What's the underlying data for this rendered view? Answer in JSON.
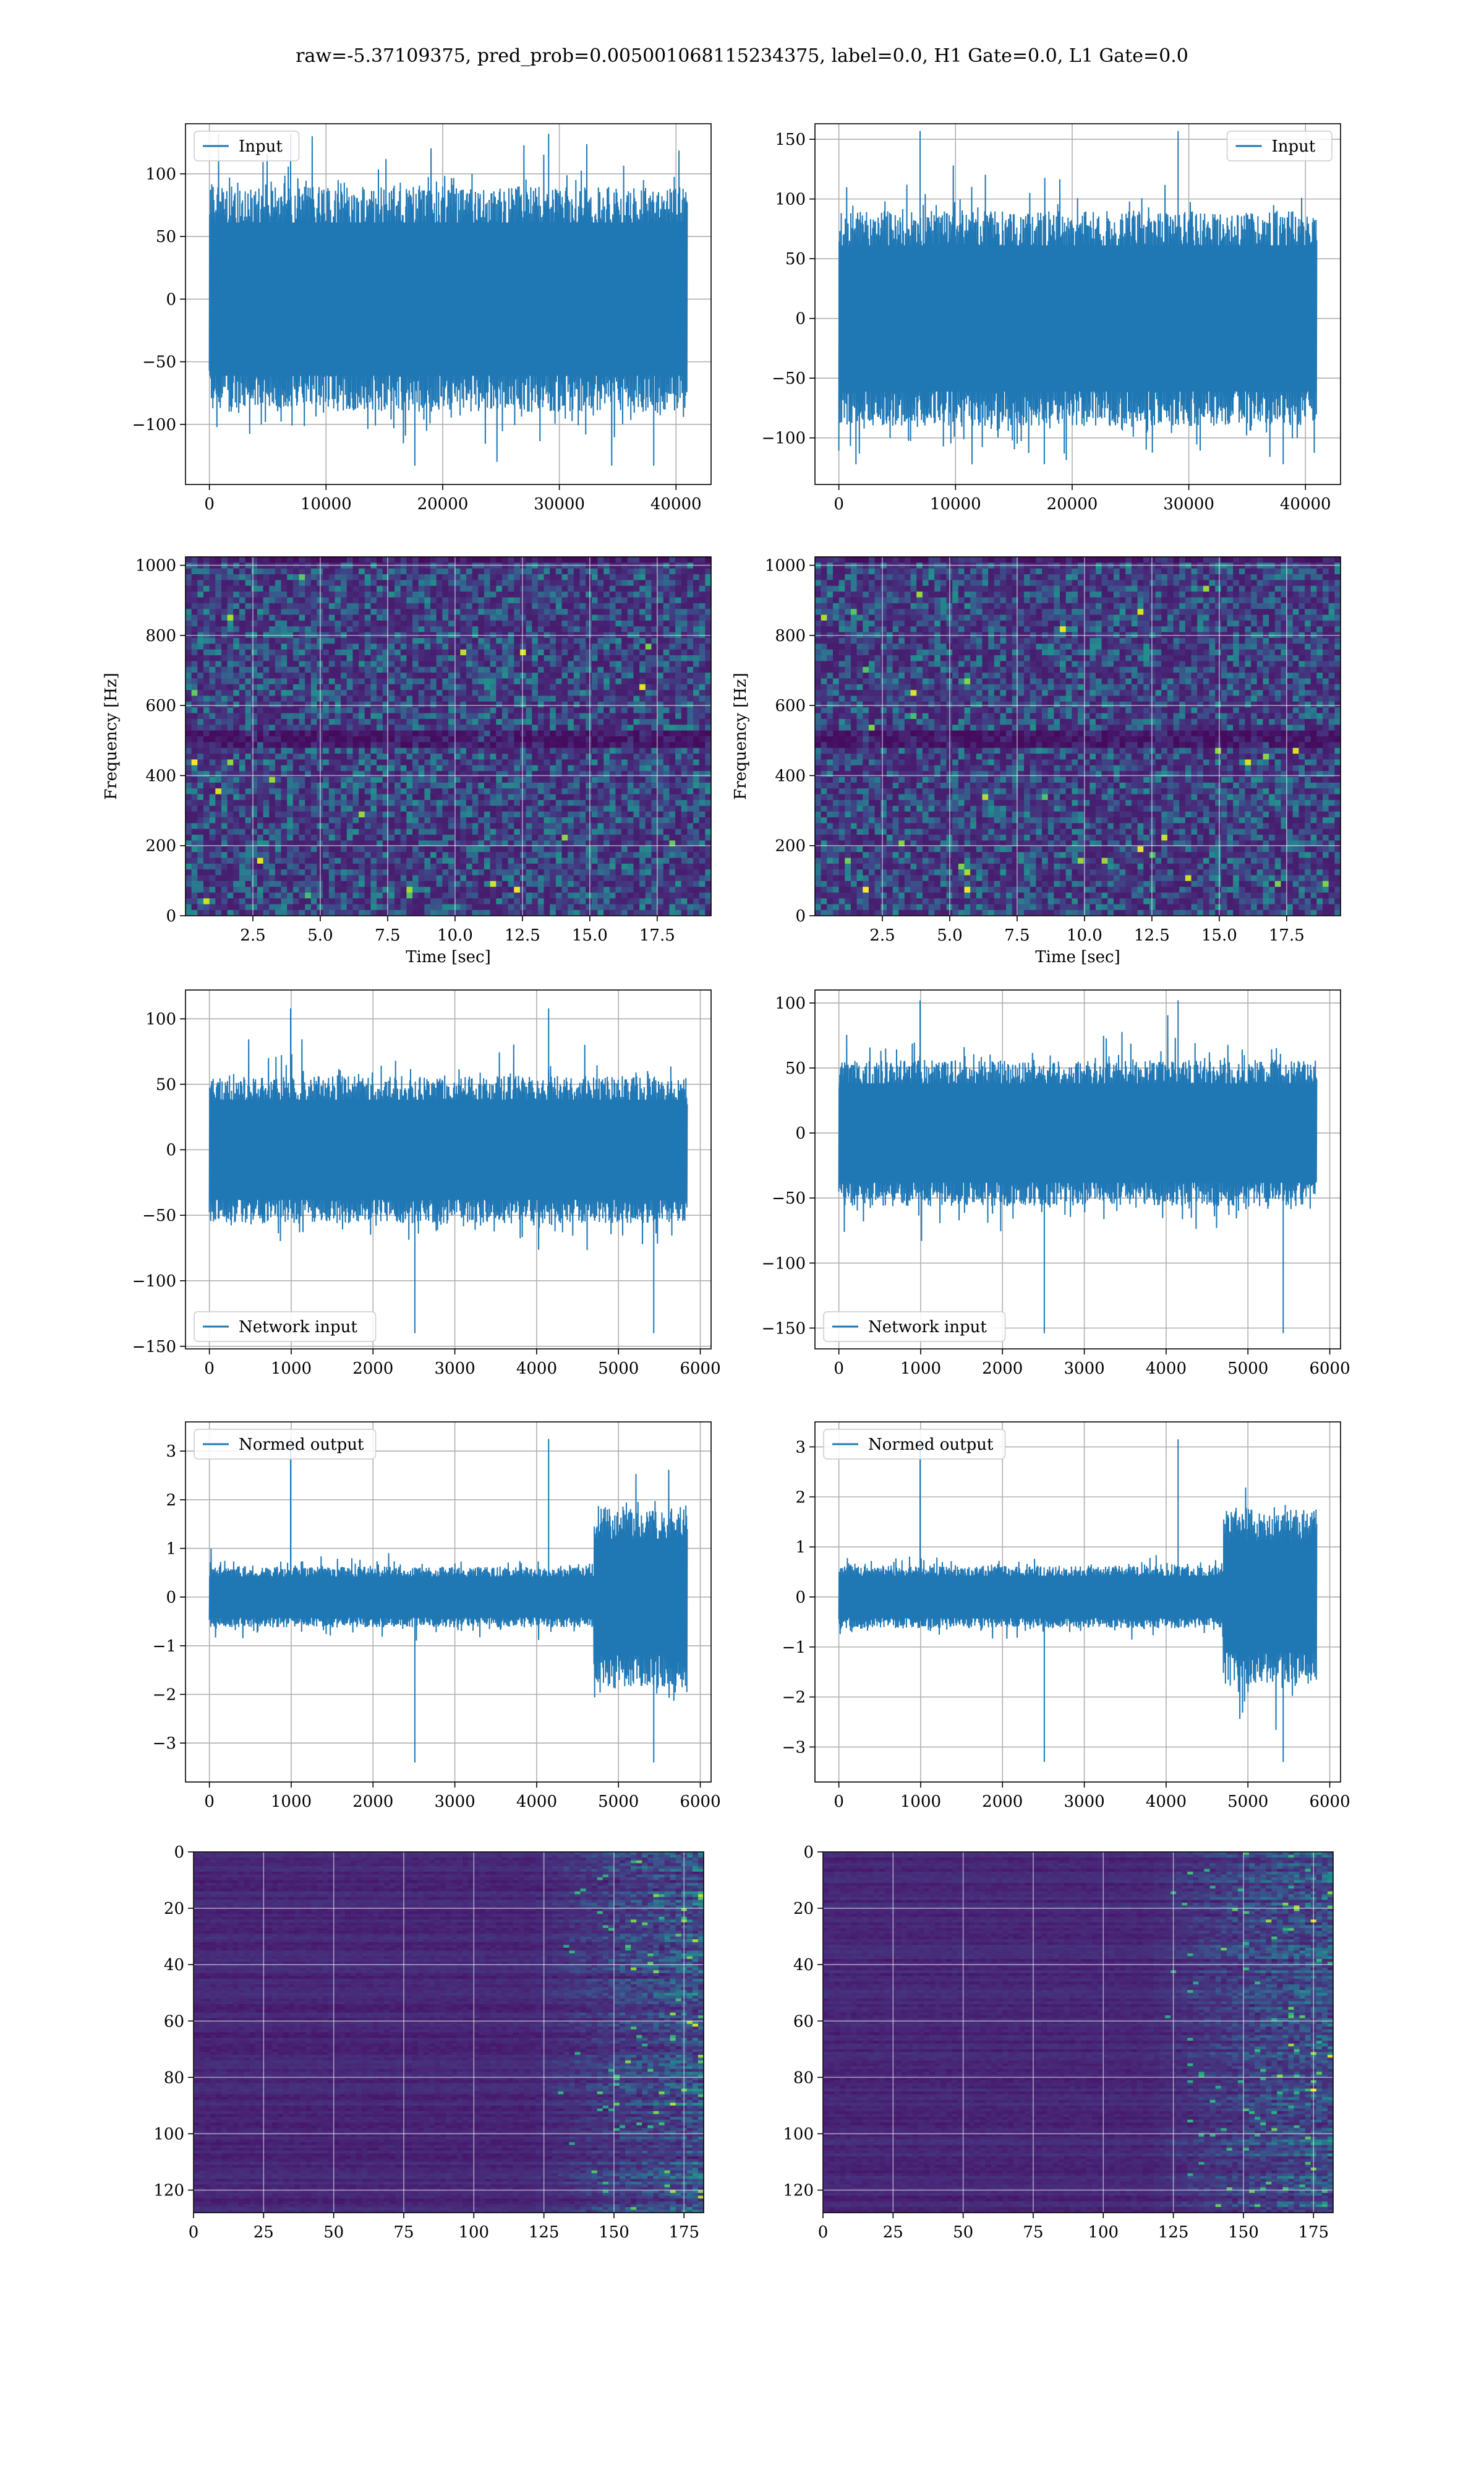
{
  "figure": {
    "suptitle": "raw=-5.37109375, pred_prob=0.005001068115234375, label=0.0, H1 Gate=0.0, L1 Gate=0.0",
    "line_color": "#1f77b4"
  },
  "chart_data": [
    {
      "id": "input-h1",
      "type": "line",
      "series": [
        {
          "name": "Input"
        }
      ],
      "legend": "upper-left",
      "xlim": [
        -2048,
        43008
      ],
      "ylim": [
        -148,
        140
      ],
      "xticks": [
        0,
        10000,
        20000,
        30000,
        40000
      ],
      "yticks": [
        -100,
        -50,
        0,
        50,
        100
      ],
      "xticklabels": [
        "0",
        "10000",
        "20000",
        "30000",
        "40000"
      ],
      "yticklabels": [
        "−100",
        "−50",
        "0",
        "50",
        "100"
      ],
      "xlabel": "",
      "ylabel": "",
      "grid": true,
      "signal": {
        "n_samples": 40960,
        "x_end": 40960,
        "envelope": [
          -72,
          72
        ],
        "peak_range": [
          -133,
          132
        ]
      }
    },
    {
      "id": "input-l1",
      "type": "line",
      "series": [
        {
          "name": "Input"
        }
      ],
      "legend": "upper-right",
      "xlim": [
        -2048,
        43008
      ],
      "ylim": [
        -139,
        163
      ],
      "xticks": [
        0,
        10000,
        20000,
        30000,
        40000
      ],
      "yticks": [
        -100,
        -50,
        0,
        50,
        100,
        150
      ],
      "xticklabels": [
        "0",
        "10000",
        "20000",
        "30000",
        "40000"
      ],
      "yticklabels": [
        "−100",
        "−50",
        "0",
        "50",
        "100",
        "150"
      ],
      "xlabel": "",
      "ylabel": "",
      "grid": true,
      "signal": {
        "n_samples": 40960,
        "x_end": 40960,
        "envelope": [
          -72,
          72
        ],
        "peak_range": [
          -122,
          157
        ]
      }
    },
    {
      "id": "spectrogram-h1",
      "type": "heatmap",
      "colormap": "viridis",
      "xlim": [
        0,
        19.5
      ],
      "ylim": [
        0,
        1024
      ],
      "xticks": [
        2.5,
        5,
        7.5,
        10,
        12.5,
        15,
        17.5
      ],
      "yticks": [
        0,
        200,
        400,
        600,
        800,
        1000
      ],
      "xticklabels": [
        "2.5",
        "5.0",
        "7.5",
        "10.0",
        "12.5",
        "15.0",
        "17.5"
      ],
      "yticklabels": [
        "0",
        "200",
        "400",
        "600",
        "800",
        "1000"
      ],
      "xlabel": "Time [sec]",
      "ylabel": "Frequency [Hz]",
      "grid": true,
      "dark_band_hz": [
        480,
        520
      ]
    },
    {
      "id": "spectrogram-l1",
      "type": "heatmap",
      "colormap": "viridis",
      "xlim": [
        0,
        19.5
      ],
      "ylim": [
        0,
        1024
      ],
      "xticks": [
        2.5,
        5,
        7.5,
        10,
        12.5,
        15,
        17.5
      ],
      "yticks": [
        0,
        200,
        400,
        600,
        800,
        1000
      ],
      "xticklabels": [
        "2.5",
        "5.0",
        "7.5",
        "10.0",
        "12.5",
        "15.0",
        "17.5"
      ],
      "yticklabels": [
        "0",
        "200",
        "400",
        "600",
        "800",
        "1000"
      ],
      "xlabel": "Time [sec]",
      "ylabel": "Frequency [Hz]",
      "grid": true,
      "dark_band_hz": [
        480,
        520
      ]
    },
    {
      "id": "network-input-h1",
      "type": "line",
      "series": [
        {
          "name": "Network input"
        }
      ],
      "legend": "lower-left",
      "xlim": [
        -292,
        6132
      ],
      "ylim": [
        -152,
        122
      ],
      "xticks": [
        0,
        1000,
        2000,
        3000,
        4000,
        5000,
        6000
      ],
      "yticks": [
        -150,
        -100,
        -50,
        0,
        50,
        100
      ],
      "xticklabels": [
        "0",
        "1000",
        "2000",
        "3000",
        "4000",
        "5000",
        "6000"
      ],
      "yticklabels": [
        "−150",
        "−100",
        "−50",
        "0",
        "50",
        "100"
      ],
      "xlabel": "",
      "ylabel": "",
      "grid": true,
      "signal": {
        "n_samples": 5840,
        "x_end": 5840,
        "envelope": [
          -45,
          45
        ],
        "peak_range": [
          -140,
          108
        ]
      }
    },
    {
      "id": "network-input-l1",
      "type": "line",
      "series": [
        {
          "name": "Network input"
        }
      ],
      "legend": "lower-left",
      "xlim": [
        -292,
        6132
      ],
      "ylim": [
        -166,
        110
      ],
      "xticks": [
        0,
        1000,
        2000,
        3000,
        4000,
        5000,
        6000
      ],
      "yticks": [
        -150,
        -100,
        -50,
        0,
        50,
        100
      ],
      "xticklabels": [
        "0",
        "1000",
        "2000",
        "3000",
        "4000",
        "5000",
        "6000"
      ],
      "yticklabels": [
        "−150",
        "−100",
        "−50",
        "0",
        "50",
        "100"
      ],
      "xlabel": "",
      "ylabel": "",
      "grid": true,
      "signal": {
        "n_samples": 5840,
        "x_end": 5840,
        "envelope": [
          -45,
          45
        ],
        "peak_range": [
          -154,
          102
        ]
      }
    },
    {
      "id": "normed-output-h1",
      "type": "line",
      "series": [
        {
          "name": "Normed output"
        }
      ],
      "legend": "upper-left",
      "xlim": [
        -292,
        6132
      ],
      "ylim": [
        -3.8,
        3.6
      ],
      "xticks": [
        0,
        1000,
        2000,
        3000,
        4000,
        5000,
        6000
      ],
      "yticks": [
        -3,
        -2,
        -1,
        0,
        1,
        2,
        3
      ],
      "xticklabels": [
        "0",
        "1000",
        "2000",
        "3000",
        "4000",
        "5000",
        "6000"
      ],
      "yticklabels": [
        "−3",
        "−2",
        "−1",
        "0",
        "1",
        "2",
        "3"
      ],
      "xlabel": "",
      "ylabel": "",
      "grid": true,
      "signal": {
        "n_samples": 5840,
        "x_end": 5840,
        "envelope": [
          -0.5,
          0.5
        ],
        "peak_range": [
          -3.4,
          3.25
        ],
        "burst_from": 4700,
        "burst_envelope": [
          -1.5,
          1.5
        ]
      }
    },
    {
      "id": "normed-output-l1",
      "type": "line",
      "series": [
        {
          "name": "Normed output"
        }
      ],
      "legend": "upper-left",
      "xlim": [
        -292,
        6132
      ],
      "ylim": [
        -3.7,
        3.5
      ],
      "xticks": [
        0,
        1000,
        2000,
        3000,
        4000,
        5000,
        6000
      ],
      "yticks": [
        -3,
        -2,
        -1,
        0,
        1,
        2,
        3
      ],
      "xticklabels": [
        "0",
        "1000",
        "2000",
        "3000",
        "4000",
        "5000",
        "6000"
      ],
      "yticklabels": [
        "−3",
        "−2",
        "−1",
        "0",
        "1",
        "2",
        "3"
      ],
      "xlabel": "",
      "ylabel": "",
      "grid": true,
      "signal": {
        "n_samples": 5840,
        "x_end": 5840,
        "envelope": [
          -0.5,
          0.5
        ],
        "peak_range": [
          -3.3,
          3.15
        ],
        "burst_from": 4700,
        "burst_envelope": [
          -1.4,
          1.4
        ]
      }
    },
    {
      "id": "feature-map-h1",
      "type": "heatmap",
      "colormap": "viridis",
      "xlim": [
        0,
        182
      ],
      "ylim": [
        128,
        0
      ],
      "xticks": [
        0,
        25,
        50,
        75,
        100,
        125,
        150,
        175
      ],
      "yticks": [
        0,
        20,
        40,
        60,
        80,
        100,
        120
      ],
      "xticklabels": [
        "0",
        "25",
        "50",
        "75",
        "100",
        "125",
        "150",
        "175"
      ],
      "yticklabels": [
        "0",
        "20",
        "40",
        "60",
        "80",
        "100",
        "120"
      ],
      "xlabel": "",
      "ylabel": "",
      "grid": true,
      "activity_from_col": 120
    },
    {
      "id": "feature-map-l1",
      "type": "heatmap",
      "colormap": "viridis",
      "xlim": [
        0,
        182
      ],
      "ylim": [
        128,
        0
      ],
      "xticks": [
        0,
        25,
        50,
        75,
        100,
        125,
        150,
        175
      ],
      "yticks": [
        0,
        20,
        40,
        60,
        80,
        100,
        120
      ],
      "xticklabels": [
        "0",
        "25",
        "50",
        "75",
        "100",
        "125",
        "150",
        "175"
      ],
      "yticklabels": [
        "0",
        "20",
        "40",
        "60",
        "80",
        "100",
        "120"
      ],
      "xlabel": "",
      "ylabel": "",
      "grid": true,
      "activity_from_col": 115
    }
  ]
}
